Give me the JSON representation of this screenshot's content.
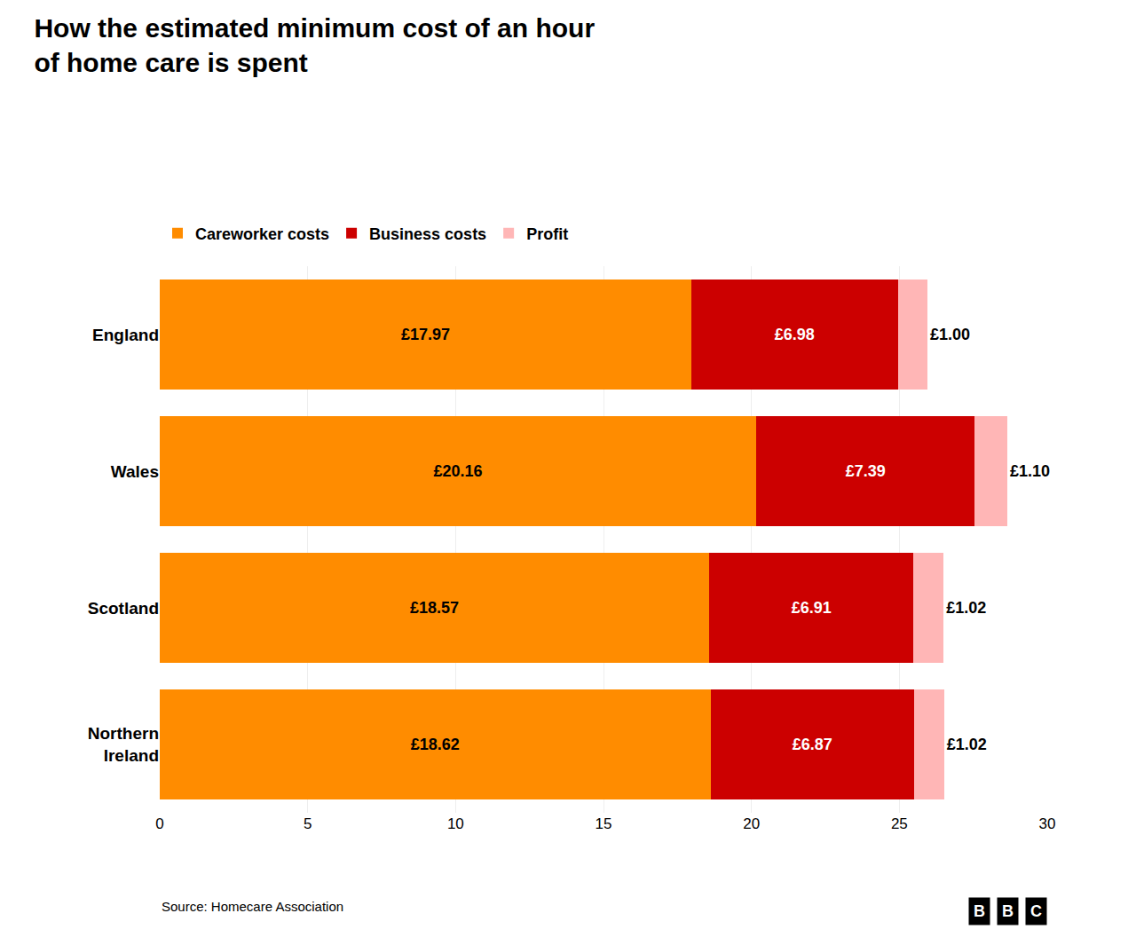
{
  "chart_data": {
    "type": "bar",
    "orientation": "horizontal",
    "stacked": true,
    "title": "How the estimated minimum cost of an hour\nof home care is spent",
    "categories": [
      "England",
      "Wales",
      "Scotland",
      "Northern\nIreland"
    ],
    "series": [
      {
        "name": "Careworker costs",
        "color": "#FF8C00",
        "values": [
          17.97,
          20.16,
          18.57,
          18.62
        ],
        "value_labels": [
          "£17.97",
          "£20.16",
          "£18.57",
          "£18.62"
        ]
      },
      {
        "name": "Business costs",
        "color": "#CC0000",
        "values": [
          6.98,
          7.39,
          6.91,
          6.87
        ],
        "value_labels": [
          "£6.98",
          "£7.39",
          "£6.91",
          "£6.87"
        ]
      },
      {
        "name": "Profit",
        "color": "#FFB6B6",
        "values": [
          1.0,
          1.1,
          1.02,
          1.02
        ],
        "value_labels": [
          "£1.00",
          "£1.10",
          "£1.02",
          "£1.02"
        ]
      }
    ],
    "xlim": [
      0,
      30
    ],
    "xticks": [
      0,
      5,
      10,
      15,
      20,
      25,
      30
    ],
    "grid": true,
    "legend": "top left",
    "data_labels": true,
    "annotations": [
      "Source: Homecare Association",
      "BBC"
    ]
  }
}
